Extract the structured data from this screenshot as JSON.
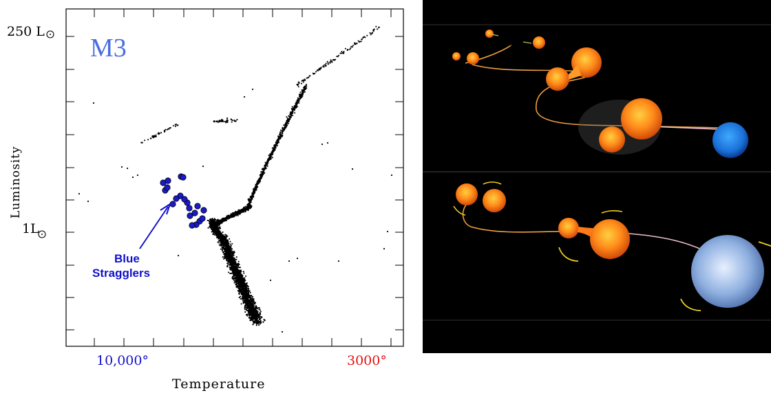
{
  "chart_data": {
    "type": "scatter",
    "title": "M3",
    "xlabel": "Temperature",
    "ylabel": "Luminosity",
    "x_tick_labels": [
      {
        "label": "10,000°",
        "color": "#1010cc"
      },
      {
        "label": "3000°",
        "color": "#e01010"
      }
    ],
    "y_tick_labels": [
      "250 L",
      "1L"
    ],
    "series": [
      {
        "name": "cluster stars",
        "color": "#000000"
      },
      {
        "name": "Blue Stragglers",
        "color": "#1a1acc"
      }
    ],
    "annotation": {
      "line1": "Blue",
      "line2": "Stragglers",
      "color": "#1010cc"
    },
    "title_color": "#4a6ee0"
  },
  "illustration": {
    "background": "#000000",
    "star_orange": "#ff8a1a",
    "star_blue": "#2a7fe0",
    "star_pale_blue": "#7fa8d8",
    "arrow_yellow": "#f0d020"
  }
}
